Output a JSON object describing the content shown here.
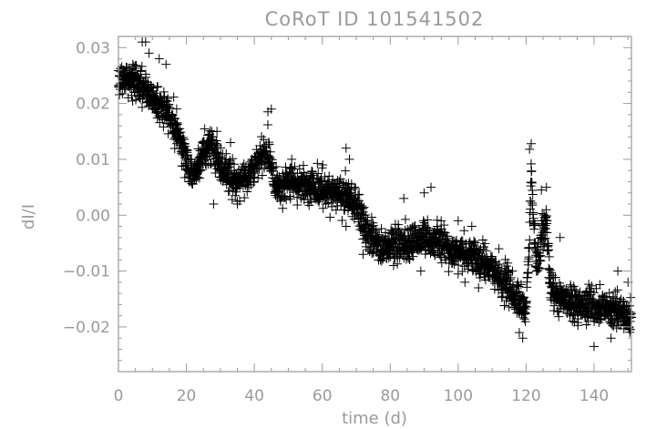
{
  "chart_data": {
    "type": "scatter",
    "title": "CoRoT ID 101541502",
    "xlabel": "time (d)",
    "ylabel": "dI/I",
    "xlim": [
      0,
      151
    ],
    "ylim": [
      -0.028,
      0.032
    ],
    "x_ticks": [
      {
        "value": 0,
        "label": "0"
      },
      {
        "value": 20,
        "label": "20"
      },
      {
        "value": 40,
        "label": "40"
      },
      {
        "value": 60,
        "label": "60"
      },
      {
        "value": 80,
        "label": "80"
      },
      {
        "value": 100,
        "label": "100"
      },
      {
        "value": 120,
        "label": "120"
      },
      {
        "value": 140,
        "label": "140"
      }
    ],
    "y_ticks": [
      {
        "value": 0.03,
        "label": "0.03"
      },
      {
        "value": 0.02,
        "label": "0.02"
      },
      {
        "value": 0.01,
        "label": "0.01"
      },
      {
        "value": 0.0,
        "label": "0.00"
      },
      {
        "value": -0.01,
        "label": "−0.01"
      },
      {
        "value": -0.02,
        "label": "−0.02"
      }
    ],
    "marker": "plus",
    "color": "#000000",
    "grid": false,
    "trend": [
      [
        0,
        0.0245
      ],
      [
        5,
        0.024
      ],
      [
        10,
        0.021
      ],
      [
        15,
        0.018
      ],
      [
        18,
        0.014
      ],
      [
        21,
        0.008
      ],
      [
        22,
        0.007
      ],
      [
        24,
        0.01
      ],
      [
        27,
        0.013
      ],
      [
        30,
        0.009
      ],
      [
        34,
        0.006
      ],
      [
        38,
        0.007
      ],
      [
        42,
        0.01
      ],
      [
        44,
        0.012
      ],
      [
        46,
        0.006
      ],
      [
        48,
        0.005
      ],
      [
        52,
        0.006
      ],
      [
        58,
        0.005
      ],
      [
        62,
        0.004
      ],
      [
        66,
        0.004
      ],
      [
        70,
        0.002
      ],
      [
        73,
        -0.003
      ],
      [
        77,
        -0.006
      ],
      [
        80,
        -0.005
      ],
      [
        85,
        -0.005
      ],
      [
        90,
        -0.004
      ],
      [
        95,
        -0.005
      ],
      [
        100,
        -0.007
      ],
      [
        105,
        -0.007
      ],
      [
        110,
        -0.01
      ],
      [
        115,
        -0.013
      ],
      [
        118,
        -0.016
      ],
      [
        120,
        -0.017
      ],
      [
        121,
        -0.004
      ],
      [
        121.5,
        0.008
      ],
      [
        122,
        0.0
      ],
      [
        123,
        -0.008
      ],
      [
        124,
        -0.006
      ],
      [
        125,
        -0.002
      ],
      [
        126,
        0.0
      ],
      [
        127,
        -0.013
      ],
      [
        130,
        -0.015
      ],
      [
        135,
        -0.016
      ],
      [
        140,
        -0.016
      ],
      [
        145,
        -0.017
      ],
      [
        151,
        -0.018
      ]
    ],
    "scatter_spread": 0.0025,
    "outliers": [
      [
        7,
        0.031
      ],
      [
        8,
        0.031
      ],
      [
        9,
        0.029
      ],
      [
        12,
        0.028
      ],
      [
        14,
        0.027
      ],
      [
        29,
        0.015
      ],
      [
        33,
        0.013
      ],
      [
        44,
        0.0185
      ],
      [
        45,
        0.019
      ],
      [
        35,
        0.002
      ],
      [
        28,
        0.002
      ],
      [
        51,
        0.01
      ],
      [
        62,
        0.007
      ],
      [
        67,
        0.012
      ],
      [
        68,
        0.01
      ],
      [
        84,
        0.003
      ],
      [
        90,
        0.004
      ],
      [
        92,
        0.005
      ],
      [
        95,
        -0.001
      ],
      [
        100,
        -0.001
      ],
      [
        104,
        -0.002
      ],
      [
        112,
        -0.006
      ],
      [
        116,
        -0.01
      ],
      [
        126,
        0.005
      ],
      [
        121.5,
        0.0128
      ],
      [
        121,
        0.0118
      ],
      [
        124.5,
        0.0045
      ],
      [
        130,
        -0.004
      ],
      [
        140,
        -0.0235
      ],
      [
        145,
        -0.022
      ],
      [
        147,
        -0.01
      ],
      [
        150,
        -0.012
      ],
      [
        67,
        -0.002
      ],
      [
        72,
        -0.007
      ],
      [
        81,
        -0.009
      ],
      [
        89,
        -0.01
      ],
      [
        102,
        -0.012
      ],
      [
        118,
        -0.021
      ],
      [
        119,
        -0.022
      ],
      [
        106,
        -0.013
      ]
    ]
  }
}
